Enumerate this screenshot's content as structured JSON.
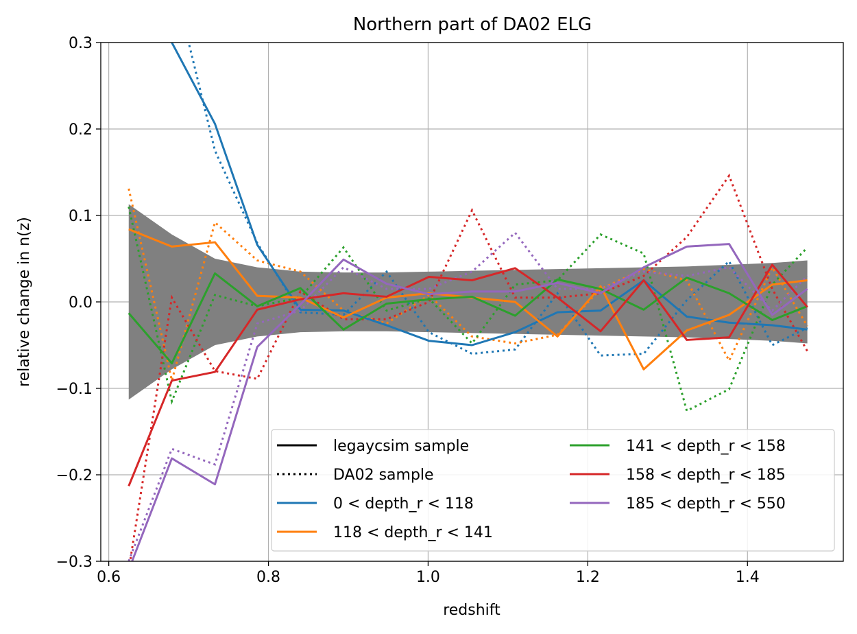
{
  "chart_data": {
    "type": "line",
    "title": "Northern part of DA02 ELG",
    "xlabel": "redshift",
    "ylabel": "relative change in n(z)",
    "xlim": [
      0.59,
      1.52
    ],
    "ylim": [
      -0.3,
      0.3
    ],
    "xticks": [
      "0.6",
      "0.8",
      "1.0",
      "1.2",
      "1.4"
    ],
    "yticks": [
      "−0.3",
      "−0.2",
      "−0.1",
      "0.0",
      "0.1",
      "0.2",
      "0.3"
    ],
    "xtick_values": [
      0.6,
      0.8,
      1.0,
      1.2,
      1.4
    ],
    "ytick_values": [
      -0.3,
      -0.2,
      -0.1,
      0.0,
      0.1,
      0.2,
      0.3
    ],
    "grid": true,
    "legend_position": "lower-right",
    "legend_columns": 2,
    "x": [
      0.625,
      0.679,
      0.733,
      0.786,
      0.84,
      0.894,
      0.948,
      1.001,
      1.055,
      1.109,
      1.162,
      1.216,
      1.27,
      1.324,
      1.377,
      1.431,
      1.475
    ],
    "band": {
      "color": "#808080",
      "upper": [
        0.113,
        0.078,
        0.05,
        0.04,
        0.035,
        0.034,
        0.034,
        0.035,
        0.036,
        0.037,
        0.038,
        0.039,
        0.04,
        0.041,
        0.043,
        0.045,
        0.048
      ],
      "lower": [
        -0.113,
        -0.078,
        -0.05,
        -0.04,
        -0.035,
        -0.034,
        -0.034,
        -0.035,
        -0.036,
        -0.037,
        -0.038,
        -0.039,
        -0.04,
        -0.041,
        -0.043,
        -0.045,
        -0.048
      ]
    },
    "series": [
      {
        "name": "0 < depth_r < 118",
        "color": "#1f77b4",
        "solid": [
          0.4,
          0.3,
          0.206,
          0.066,
          -0.009,
          -0.01,
          -0.027,
          -0.045,
          -0.05,
          -0.035,
          -0.012,
          -0.01,
          0.025,
          -0.017,
          -0.024,
          -0.027,
          -0.032
        ],
        "dotted": [
          0.45,
          0.38,
          0.175,
          0.068,
          -0.012,
          -0.015,
          0.035,
          -0.035,
          -0.06,
          -0.055,
          0.01,
          -0.062,
          -0.06,
          0.002,
          0.047,
          -0.05,
          -0.03
        ]
      },
      {
        "name": "118 < depth_r < 141",
        "color": "#ff7f0e",
        "solid": [
          0.084,
          0.064,
          0.069,
          0.007,
          0.005,
          -0.018,
          0.005,
          0.01,
          0.005,
          0.0,
          -0.04,
          0.018,
          -0.078,
          -0.033,
          -0.015,
          0.02,
          0.025
        ],
        "dotted": [
          0.131,
          -0.091,
          0.092,
          0.048,
          0.035,
          -0.01,
          -0.025,
          0.008,
          -0.04,
          -0.048,
          -0.038,
          0.015,
          0.038,
          0.025,
          -0.068,
          0.04,
          -0.028
        ]
      },
      {
        "name": "141 < depth_r < 158",
        "color": "#2ca02c",
        "solid": [
          -0.013,
          -0.071,
          0.033,
          -0.005,
          0.016,
          -0.032,
          -0.002,
          0.003,
          0.006,
          -0.016,
          0.026,
          0.015,
          -0.009,
          0.028,
          0.01,
          -0.021,
          -0.005
        ],
        "dotted": [
          0.11,
          -0.115,
          0.008,
          -0.005,
          0.005,
          0.063,
          -0.01,
          0.004,
          -0.048,
          0.02,
          0.025,
          0.078,
          0.056,
          -0.126,
          -0.101,
          0.02,
          0.063
        ]
      },
      {
        "name": "158 < depth_r < 185",
        "color": "#d62728",
        "solid": [
          -0.213,
          -0.091,
          -0.081,
          -0.009,
          0.003,
          0.01,
          0.006,
          0.029,
          0.025,
          0.039,
          0.005,
          -0.034,
          0.025,
          -0.044,
          -0.041,
          0.043,
          -0.006
        ],
        "dotted": [
          -0.31,
          0.005,
          -0.08,
          -0.089,
          0.012,
          -0.02,
          -0.02,
          0.0,
          0.106,
          0.005,
          0.005,
          0.01,
          0.03,
          0.075,
          0.146,
          0.015,
          -0.057
        ]
      },
      {
        "name": "185 < depth_r < 550",
        "color": "#9467bd",
        "solid": [
          -0.31,
          -0.181,
          -0.211,
          -0.052,
          -0.003,
          0.049,
          0.021,
          0.009,
          0.012,
          0.012,
          0.022,
          0.01,
          0.04,
          0.064,
          0.067,
          -0.015,
          0.015
        ],
        "dotted": [
          -0.3,
          -0.17,
          -0.188,
          -0.025,
          -0.01,
          0.04,
          0.015,
          0.015,
          0.035,
          0.08,
          0.015,
          0.015,
          0.035,
          0.03,
          0.04,
          -0.01,
          0.03
        ]
      }
    ],
    "legend": {
      "style_entries": [
        {
          "label": "legaycsim sample",
          "style": "solid",
          "color": "#000000"
        },
        {
          "label": "DA02 sample",
          "style": "dotted",
          "color": "#000000"
        }
      ]
    }
  }
}
